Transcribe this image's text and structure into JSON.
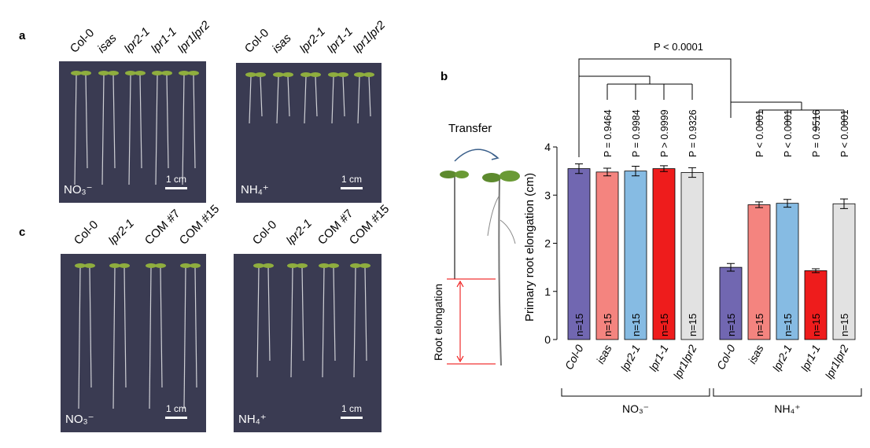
{
  "panel_labels": [
    "a",
    "b",
    "c"
  ],
  "panel_a": {
    "genotypes": [
      "Col-0",
      "isas",
      "lpr2-1",
      "lpr1-1",
      "lpr1lpr2"
    ],
    "plates": [
      {
        "condition": "NO₃⁻",
        "scale_bar": "1 cm"
      },
      {
        "condition": "NH₄⁺",
        "scale_bar": "1 cm"
      }
    ]
  },
  "panel_c": {
    "genotypes": [
      "Col-0",
      "lpr2-1",
      "COM #7",
      "COM #15"
    ],
    "plates": [
      {
        "condition": "NO₃⁻",
        "scale_bar": "1 cm"
      },
      {
        "condition": "NH₄⁺",
        "scale_bar": "1 cm"
      }
    ]
  },
  "diagram": {
    "transfer": "Transfer",
    "elongation": "Root elongation"
  },
  "chart_data": {
    "type": "bar",
    "ylabel": "Primary root elongation (cm)",
    "categories": [
      "Col-0",
      "isas",
      "lpr2-1",
      "lpr1-1",
      "lpr1lpr2"
    ],
    "colors": [
      "#7167b1",
      "#f4847f",
      "#86bbe3",
      "#ee1c1c",
      "#e2e2e2"
    ],
    "ylim": [
      0,
      4
    ],
    "yticks": [
      0,
      1,
      2,
      3,
      4
    ],
    "top_p": "P < 0.0001",
    "groups": [
      {
        "name": "NO₃⁻",
        "values": [
          3.55,
          3.48,
          3.5,
          3.55,
          3.47
        ],
        "errors": [
          0.1,
          0.08,
          0.1,
          0.06,
          0.1
        ],
        "n_labels": [
          "n=15",
          "n=15",
          "n=15",
          "n=15",
          "n=15"
        ],
        "p_labels": [
          null,
          "P = 0.9464",
          "P = 0.9984",
          "P > 0.9999",
          "P = 0.9326"
        ]
      },
      {
        "name": "NH₄⁺",
        "values": [
          1.5,
          2.8,
          2.83,
          1.43,
          2.82
        ],
        "errors": [
          0.08,
          0.06,
          0.08,
          0.04,
          0.1
        ],
        "n_labels": [
          "n=15",
          "n=15",
          "n=15",
          "n=15",
          "n=15"
        ],
        "p_labels": [
          null,
          "P < 0.0001",
          "P < 0.0001",
          "P = 0.9516",
          "P < 0.0001"
        ]
      }
    ]
  }
}
